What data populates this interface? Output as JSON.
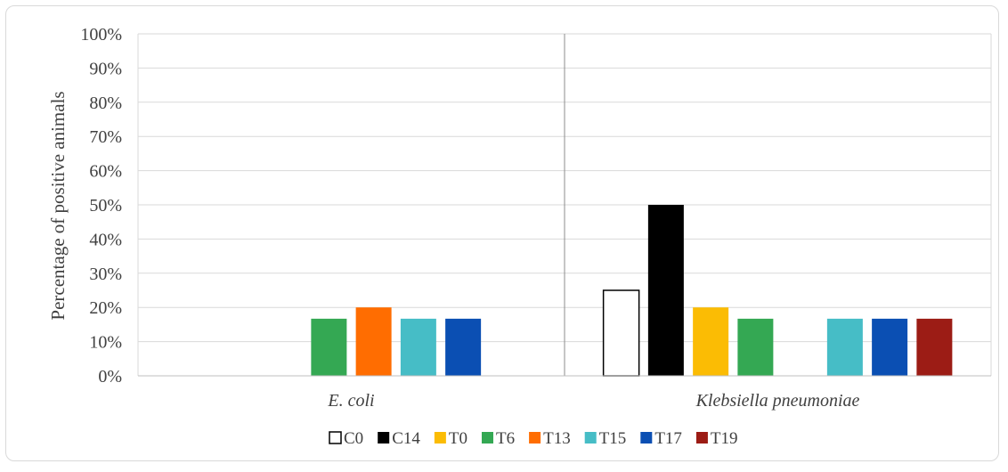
{
  "chart_data": {
    "type": "bar",
    "title": "",
    "xlabel": "",
    "ylabel": "Percentage of positive animals",
    "ylim": [
      0,
      100
    ],
    "yticks": [
      "0%",
      "10%",
      "20%",
      "30%",
      "40%",
      "50%",
      "60%",
      "70%",
      "80%",
      "90%",
      "100%"
    ],
    "categories": [
      "E. coli",
      "Klebsiella pneumoniae"
    ],
    "grid": true,
    "legend_position": "bottom",
    "series": [
      {
        "name": "C0",
        "color": "#ffffff",
        "stroke": "#000000",
        "values": [
          0,
          25
        ]
      },
      {
        "name": "C14",
        "color": "#000000",
        "values": [
          0,
          50
        ]
      },
      {
        "name": "T0",
        "color": "#fbbc04",
        "values": [
          0,
          20
        ]
      },
      {
        "name": "T6",
        "color": "#34a853",
        "values": [
          16.7,
          16.7
        ]
      },
      {
        "name": "T13",
        "color": "#ff6d01",
        "values": [
          20,
          0
        ]
      },
      {
        "name": "T15",
        "color": "#46bdc6",
        "values": [
          16.7,
          16.7
        ]
      },
      {
        "name": "T17",
        "color": "#0b4fb3",
        "values": [
          16.7,
          16.7
        ]
      },
      {
        "name": "T19",
        "color": "#9c1c15",
        "values": [
          0,
          16.7
        ]
      }
    ]
  }
}
